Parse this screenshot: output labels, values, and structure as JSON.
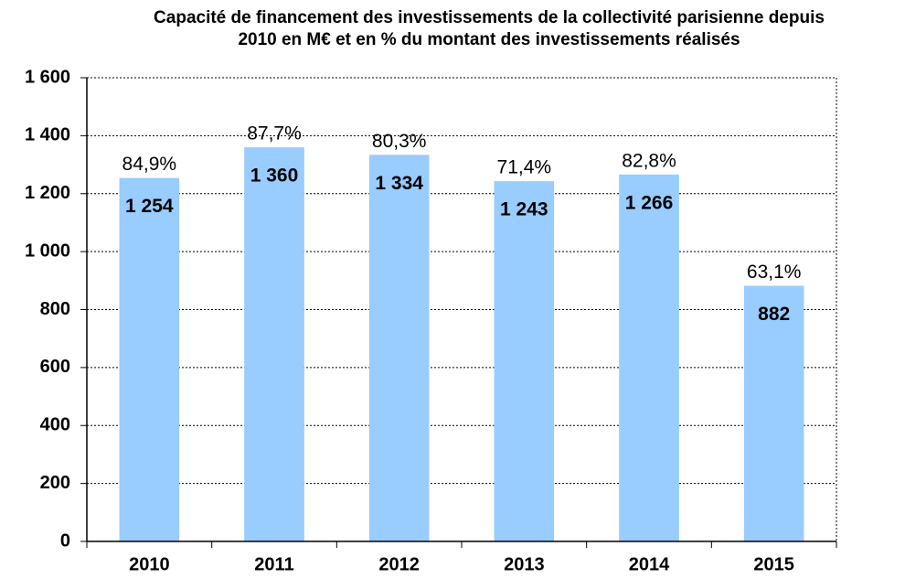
{
  "chart_data": {
    "type": "bar",
    "title": [
      "Capacité de financement des investissements de la collectivité parisienne depuis",
      "2010 en M€ et en % du montant des investissements réalisés"
    ],
    "categories": [
      "2010",
      "2011",
      "2012",
      "2013",
      "2014",
      "2015"
    ],
    "values": [
      1254,
      1360,
      1334,
      1243,
      1266,
      882
    ],
    "value_labels": [
      "1 254",
      "1 360",
      "1 334",
      "1 243",
      "1 266",
      "882"
    ],
    "annotations": [
      "84,9%",
      "87,7%",
      "80,3%",
      "71,4%",
      "82,8%",
      "63,1%"
    ],
    "color": "#99ccff",
    "ylim": [
      0,
      1600
    ],
    "yticks": [
      0,
      200,
      400,
      600,
      800,
      {
        "value": 1000,
        "label": "1 000"
      },
      {
        "value": 1200,
        "label": "1 200"
      },
      {
        "value": 1400,
        "label": "1 400"
      },
      {
        "value": 1600,
        "label": "1 600"
      }
    ],
    "grid": true
  }
}
